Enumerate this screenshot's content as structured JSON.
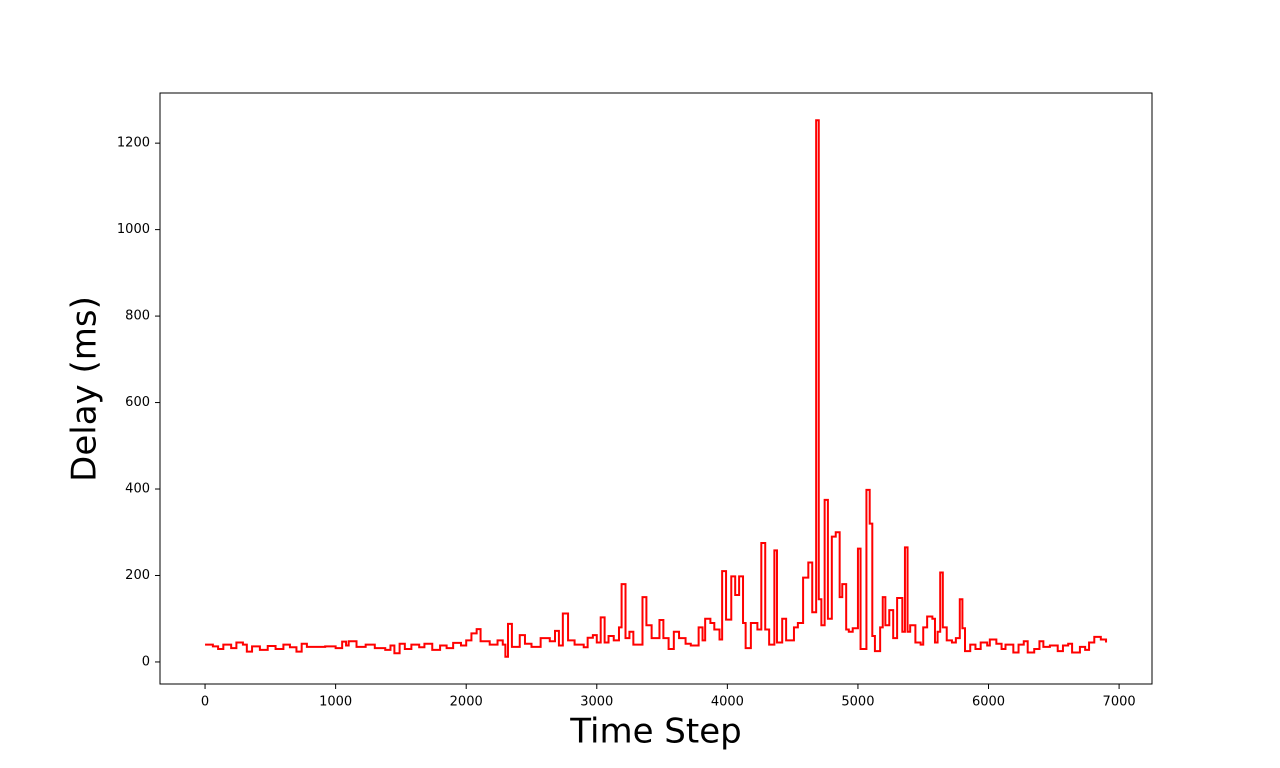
{
  "chart_data": {
    "type": "step",
    "x_label": "Time Step",
    "y_label": "Delay (ms)",
    "color": "#ff0000",
    "xlim": [
      -345,
      7252
    ],
    "ylim": [
      -51,
      1316
    ],
    "xticks": [
      0,
      1000,
      2000,
      3000,
      4000,
      5000,
      6000,
      7000
    ],
    "yticks": [
      0,
      200,
      400,
      600,
      800,
      1000,
      1200
    ],
    "x": [
      0,
      60,
      100,
      140,
      200,
      240,
      290,
      320,
      360,
      420,
      480,
      540,
      600,
      650,
      700,
      740,
      780,
      850,
      920,
      1000,
      1050,
      1080,
      1100,
      1160,
      1230,
      1300,
      1380,
      1420,
      1450,
      1490,
      1530,
      1580,
      1640,
      1680,
      1740,
      1800,
      1850,
      1900,
      1960,
      2000,
      2040,
      2080,
      2110,
      2180,
      2240,
      2280,
      2300,
      2320,
      2350,
      2410,
      2450,
      2500,
      2570,
      2640,
      2680,
      2710,
      2740,
      2780,
      2830,
      2900,
      2930,
      2970,
      3000,
      3030,
      3060,
      3090,
      3130,
      3170,
      3190,
      3220,
      3250,
      3280,
      3350,
      3380,
      3420,
      3480,
      3510,
      3550,
      3590,
      3630,
      3680,
      3720,
      3780,
      3810,
      3830,
      3870,
      3900,
      3940,
      3960,
      3990,
      4030,
      4060,
      4090,
      4120,
      4140,
      4180,
      4230,
      4260,
      4290,
      4320,
      4360,
      4380,
      4420,
      4450,
      4510,
      4540,
      4580,
      4620,
      4650,
      4680,
      4700,
      4720,
      4745,
      4770,
      4800,
      4830,
      4860,
      4880,
      4910,
      4930,
      4960,
      5000,
      5020,
      5065,
      5090,
      5110,
      5130,
      5170,
      5190,
      5210,
      5240,
      5270,
      5300,
      5340,
      5360,
      5380,
      5400,
      5440,
      5480,
      5500,
      5530,
      5570,
      5590,
      5610,
      5630,
      5650,
      5680,
      5720,
      5750,
      5780,
      5800,
      5820,
      5860,
      5900,
      5940,
      5990,
      6010,
      6060,
      6100,
      6130,
      6190,
      6230,
      6270,
      6300,
      6350,
      6390,
      6420,
      6470,
      6530,
      6570,
      6610,
      6640,
      6700,
      6740,
      6770,
      6810,
      6860,
      6900
    ],
    "values": [
      40,
      36,
      30,
      40,
      32,
      45,
      40,
      24,
      36,
      28,
      37,
      30,
      40,
      34,
      24,
      42,
      35,
      35,
      36,
      32,
      47,
      38,
      48,
      35,
      40,
      32,
      28,
      38,
      20,
      42,
      30,
      40,
      34,
      42,
      28,
      38,
      32,
      44,
      38,
      50,
      66,
      76,
      48,
      40,
      50,
      40,
      12,
      88,
      35,
      62,
      42,
      35,
      55,
      48,
      72,
      38,
      112,
      50,
      40,
      34,
      56,
      62,
      45,
      103,
      45,
      60,
      50,
      80,
      180,
      55,
      70,
      40,
      150,
      85,
      55,
      97,
      55,
      30,
      70,
      55,
      42,
      38,
      80,
      50,
      100,
      90,
      75,
      52,
      210,
      98,
      198,
      155,
      198,
      90,
      32,
      90,
      75,
      275,
      75,
      40,
      258,
      45,
      100,
      50,
      80,
      90,
      195,
      230,
      115,
      1253,
      145,
      85,
      375,
      100,
      290,
      300,
      150,
      180,
      75,
      70,
      78,
      262,
      30,
      398,
      320,
      60,
      25,
      80,
      150,
      85,
      120,
      55,
      148,
      70,
      265,
      70,
      85,
      45,
      40,
      80,
      105,
      100,
      45,
      70,
      207,
      80,
      50,
      45,
      55,
      145,
      78,
      25,
      40,
      30,
      45,
      38,
      52,
      42,
      30,
      40,
      22,
      40,
      48,
      22,
      30,
      48,
      35,
      38,
      25,
      38,
      42,
      22,
      35,
      28,
      45,
      58,
      52,
      45
    ]
  }
}
